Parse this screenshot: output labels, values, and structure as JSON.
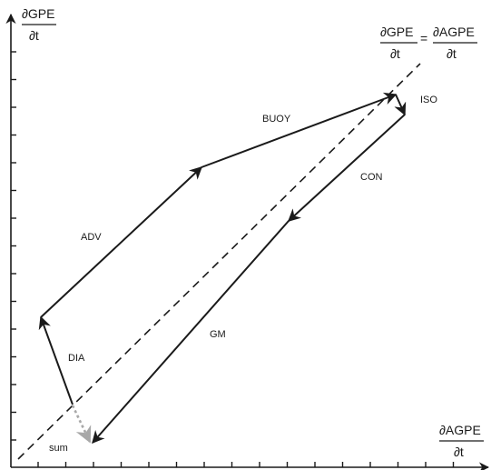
{
  "axes": {
    "y_label": {
      "numerator": "∂GPE",
      "denominator": "∂t"
    },
    "x_label": {
      "numerator": "∂AGPE",
      "denominator": "∂t"
    }
  },
  "diagonal_label": {
    "left": {
      "numerator": "∂GPE",
      "denominator": "∂t"
    },
    "equals": "=",
    "right": {
      "numerator": "∂AGPE",
      "denominator": "∂t"
    }
  },
  "vectors": [
    {
      "id": "dia",
      "label": "DIA"
    },
    {
      "id": "adv",
      "label": "ADV"
    },
    {
      "id": "buoy",
      "label": "BUOY"
    },
    {
      "id": "iso",
      "label": "ISO"
    },
    {
      "id": "con",
      "label": "CON"
    },
    {
      "id": "gm",
      "label": "GM"
    },
    {
      "id": "sum",
      "label": "sum"
    }
  ],
  "colors": {
    "line": "#1a1a1a",
    "sum": "#a8a8a8"
  }
}
